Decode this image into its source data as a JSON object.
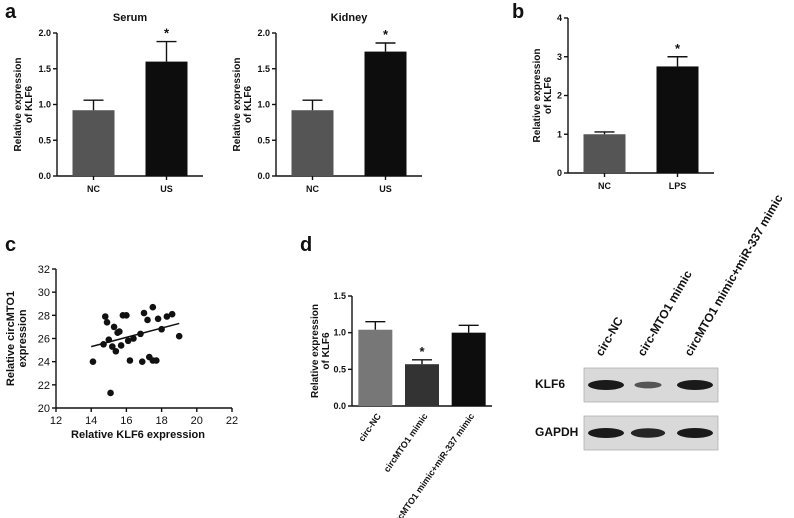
{
  "panels": {
    "a": "a",
    "b": "b",
    "c": "c",
    "d": "d"
  },
  "colors": {
    "dark_gray": "#555555",
    "black": "#0d0d0d",
    "mid_gray": "#777777",
    "blot_bg": "#d9d9d9",
    "band": "#1a1a1a"
  },
  "chart_data": [
    {
      "id": "a_serum",
      "type": "bar",
      "title": "Serum",
      "ylabel": "Relative expression of KLF6",
      "categories": [
        "NC",
        "US"
      ],
      "values": [
        0.92,
        1.6
      ],
      "errors": [
        0.14,
        0.28
      ],
      "significance": [
        "",
        "*"
      ],
      "ylim": [
        0,
        2.0
      ],
      "yticks": [
        "0.0",
        "0.5",
        "1.0",
        "1.5",
        "2.0"
      ],
      "bar_colors": [
        "#555555",
        "#0d0d0d"
      ]
    },
    {
      "id": "a_kidney",
      "type": "bar",
      "title": "Kidney",
      "ylabel": "Relative expression of KLF6",
      "categories": [
        "NC",
        "US"
      ],
      "values": [
        0.92,
        1.74
      ],
      "errors": [
        0.14,
        0.12
      ],
      "significance": [
        "",
        "*"
      ],
      "ylim": [
        0,
        2.0
      ],
      "yticks": [
        "0.0",
        "0.5",
        "1.0",
        "1.5",
        "2.0"
      ],
      "bar_colors": [
        "#555555",
        "#0d0d0d"
      ]
    },
    {
      "id": "b",
      "type": "bar",
      "title": "",
      "ylabel": "Relative expression of KLF6",
      "categories": [
        "NC",
        "LPS"
      ],
      "values": [
        1.0,
        2.75
      ],
      "errors": [
        0.06,
        0.25
      ],
      "significance": [
        "",
        "*"
      ],
      "ylim": [
        0,
        4
      ],
      "yticks": [
        "0",
        "1",
        "2",
        "3",
        "4"
      ],
      "bar_colors": [
        "#555555",
        "#0d0d0d"
      ]
    },
    {
      "id": "c",
      "type": "scatter",
      "title": "",
      "xlabel": "Relative KLF6 expression",
      "ylabel": "Relative circMTO1 expression",
      "xlim": [
        12,
        22
      ],
      "ylim": [
        20,
        32
      ],
      "xticks": [
        "12",
        "14",
        "16",
        "18",
        "20",
        "22"
      ],
      "yticks": [
        "20",
        "22",
        "24",
        "26",
        "28",
        "30",
        "32"
      ],
      "points": [
        [
          14.1,
          24.0
        ],
        [
          14.7,
          25.5
        ],
        [
          14.8,
          27.9
        ],
        [
          14.9,
          27.4
        ],
        [
          15.0,
          25.9
        ],
        [
          15.1,
          21.3
        ],
        [
          15.2,
          25.3
        ],
        [
          15.3,
          27.0
        ],
        [
          15.4,
          24.9
        ],
        [
          15.5,
          26.5
        ],
        [
          15.6,
          26.6
        ],
        [
          15.7,
          25.4
        ],
        [
          15.8,
          28.0
        ],
        [
          16.0,
          28.0
        ],
        [
          16.2,
          24.1
        ],
        [
          16.1,
          25.8
        ],
        [
          16.4,
          26.0
        ],
        [
          16.8,
          26.4
        ],
        [
          16.9,
          24.0
        ],
        [
          17.0,
          28.2
        ],
        [
          17.2,
          27.6
        ],
        [
          17.3,
          24.4
        ],
        [
          17.5,
          24.1
        ],
        [
          17.5,
          28.7
        ],
        [
          17.7,
          24.1
        ],
        [
          17.8,
          27.7
        ],
        [
          18.0,
          26.8
        ],
        [
          18.3,
          27.9
        ],
        [
          18.6,
          28.1
        ],
        [
          19.0,
          26.2
        ]
      ],
      "trendline": [
        [
          14.0,
          25.3
        ],
        [
          19.0,
          27.3
        ]
      ]
    },
    {
      "id": "d",
      "type": "bar",
      "title": "",
      "ylabel": "Relative expression of KLF6",
      "categories": [
        "circ-NC",
        "circMTO1 mimic",
        "circMTO1 mimic+miR-337 mimic"
      ],
      "values": [
        1.04,
        0.57,
        1.0
      ],
      "errors": [
        0.11,
        0.06,
        0.1
      ],
      "significance": [
        "",
        "*",
        ""
      ],
      "ylim": [
        0,
        1.5
      ],
      "yticks": [
        "0.0",
        "0.5",
        "1.0",
        "1.5"
      ],
      "bar_colors": [
        "#777777",
        "#333333",
        "#0d0d0d"
      ]
    }
  ],
  "blot": {
    "lanes": [
      "circ-NC",
      "circ-MTO1 mimic",
      "circMTO1 mimic+miR-337 mimic"
    ],
    "rows": [
      {
        "label": "KLF6",
        "intensity": [
          1.0,
          0.45,
          1.0
        ]
      },
      {
        "label": "GAPDH",
        "intensity": [
          1.0,
          0.9,
          1.0
        ]
      }
    ]
  }
}
